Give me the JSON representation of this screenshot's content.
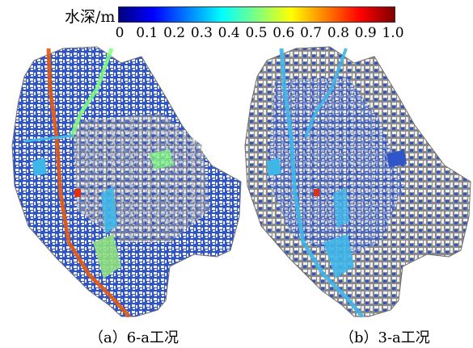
{
  "legend": {
    "title": "水深/m",
    "ticks": [
      "0",
      "0.1",
      "0.2",
      "0.3",
      "0.4",
      "0.5",
      "0.6",
      "0.7",
      "0.8",
      "0.9",
      "1.0"
    ],
    "colors": [
      "#00007f",
      "#0000ff",
      "#007fff",
      "#00ffff",
      "#7fff7f",
      "#ffff00",
      "#ff7f00",
      "#ff0000",
      "#7f0000"
    ]
  },
  "panels": [
    {
      "caption": "（a）6-a工况"
    },
    {
      "caption": "（b）3-a工况"
    }
  ],
  "colors": {
    "road": "#8a8a8a",
    "building": "#f2f2f2",
    "water_shallow": "#2f55c8",
    "water_deep": "#00008f",
    "channel_low": "#3fb6e8",
    "channel_high": "#e03010",
    "patch_green": "#8fe07f"
  }
}
